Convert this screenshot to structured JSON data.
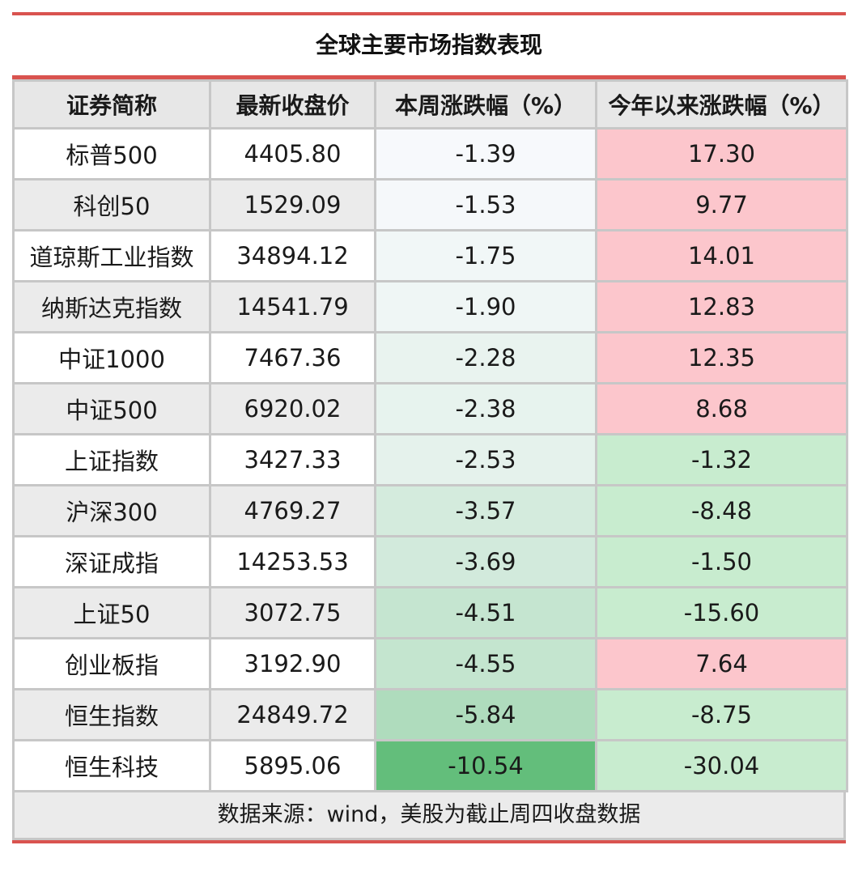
{
  "chart_data": {
    "type": "table",
    "title": "全球主要市场指数表现",
    "columns": [
      "证券简称",
      "最新收盘价",
      "本周涨跌幅（%）",
      "今年以来涨跌幅（%）"
    ],
    "rows": [
      {
        "name": "标普500",
        "close": "4405.80",
        "week": "-1.39",
        "ytd": "17.30"
      },
      {
        "name": "科创50",
        "close": "1529.09",
        "week": "-1.53",
        "ytd": "9.77"
      },
      {
        "name": "道琼斯工业指数",
        "close": "34894.12",
        "week": "-1.75",
        "ytd": "14.01"
      },
      {
        "name": "纳斯达克指数",
        "close": "14541.79",
        "week": "-1.90",
        "ytd": "12.83"
      },
      {
        "name": "中证1000",
        "close": "7467.36",
        "week": "-2.28",
        "ytd": "12.35"
      },
      {
        "name": "中证500",
        "close": "6920.02",
        "week": "-2.38",
        "ytd": "8.68"
      },
      {
        "name": "上证指数",
        "close": "3427.33",
        "week": "-2.53",
        "ytd": "-1.32"
      },
      {
        "name": "沪深300",
        "close": "4769.27",
        "week": "-3.57",
        "ytd": "-8.48"
      },
      {
        "name": "深证成指",
        "close": "14253.53",
        "week": "-3.69",
        "ytd": "-1.50"
      },
      {
        "name": "上证50",
        "close": "3072.75",
        "week": "-4.51",
        "ytd": "-15.60"
      },
      {
        "name": "创业板指",
        "close": "3192.90",
        "week": "-4.55",
        "ytd": "7.64"
      },
      {
        "name": "恒生指数",
        "close": "24849.72",
        "week": "-5.84",
        "ytd": "-8.75"
      },
      {
        "name": "恒生科技",
        "close": "5895.06",
        "week": "-10.54",
        "ytd": "-30.04"
      }
    ],
    "source_note": "数据来源：wind，美股为截止周四收盘数据"
  },
  "colors": {
    "accent_rule": "#d9534f",
    "header_bg": "#e7e7e7",
    "ytd_positive_bg": "#fcc6cc",
    "ytd_positive_text": "#b0141c",
    "ytd_negative_bg": "#c8eccf",
    "ytd_negative_text": "#1e7a1e",
    "week_scale_light": "#f7f9fc",
    "week_scale_dark": "#63be7b"
  }
}
